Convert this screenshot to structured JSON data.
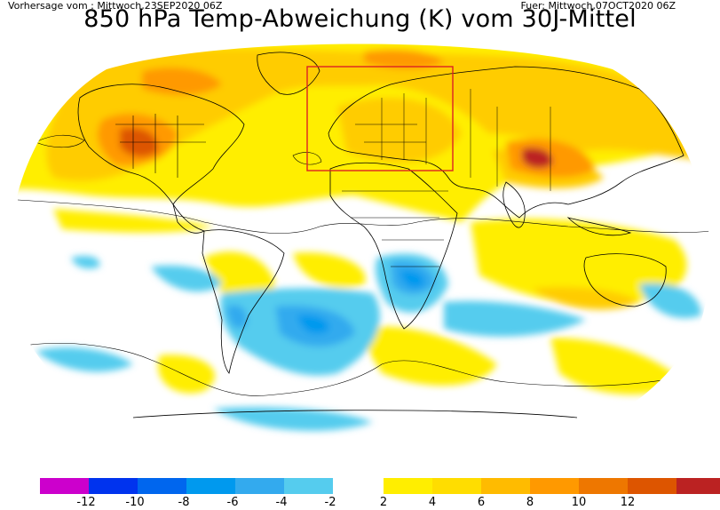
{
  "header": {
    "run_info": "Vorhersage vom : Mittwoch,23SEP2020 06Z",
    "valid_info": "Fuer: Mittwoch,07OCT2020 06Z",
    "title": "850 hPa Temp-Abweichung (K) vom 30J-Mittel"
  },
  "map": {
    "projection": "robinson-like world",
    "highlight_box_color": "#dd2222",
    "highlight_box_region": "Europe",
    "zero_contour_color": "#000000",
    "warm_anomaly_regions": [
      {
        "region": "North America / central USA",
        "value_class": 8
      },
      {
        "region": "North Atlantic / Greenland",
        "value_class": 4
      },
      {
        "region": "Europe",
        "value_class": 4
      },
      {
        "region": "Central Asia / Tibet",
        "value_class": 10
      },
      {
        "region": "Arctic Siberia",
        "value_class": 4
      },
      {
        "region": "Northern Indian Ocean / Africa",
        "value_class": 2
      }
    ],
    "cold_anomaly_regions": [
      {
        "region": "Southern Africa",
        "value_class": -6
      },
      {
        "region": "South Atlantic",
        "value_class": -6
      },
      {
        "region": "South America (Patagonia)",
        "value_class": -4
      },
      {
        "region": "Southern Indian Ocean",
        "value_class": -2
      }
    ]
  },
  "colorbar": {
    "negative_colors": [
      "#cc00cc",
      "#0033ee",
      "#0066ee",
      "#0099ee",
      "#33aaee",
      "#55ccee",
      "#33ddee"
    ],
    "positive_colors": [
      "#ffee00",
      "#ffdd00",
      "#ffbb00",
      "#ff9900",
      "#ee7700",
      "#dd5500",
      "#bb2222"
    ],
    "ticks": [
      "-12",
      "-10",
      "-8",
      "-6",
      "-4",
      "-2",
      "2",
      "4",
      "6",
      "8",
      "10",
      "12"
    ]
  }
}
